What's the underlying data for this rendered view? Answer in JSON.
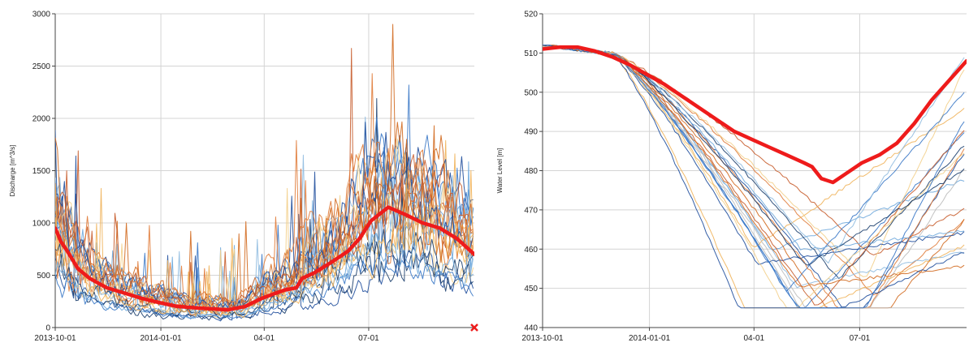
{
  "chart_data": [
    {
      "type": "line",
      "xlabel": "",
      "ylabel": "Discharge [m^3/s]",
      "ylim": [
        0,
        3000
      ],
      "yticks": [
        "0",
        "500",
        "1000",
        "1500",
        "2000",
        "2500",
        "3000"
      ],
      "xticks": [
        "2013-10-01",
        "2014-01-01",
        "04-01",
        "07-01"
      ],
      "x_range_days": [
        0,
        365
      ],
      "xtick_days": [
        0,
        92,
        182,
        273
      ],
      "grid": true,
      "end_marker": "red x",
      "main_color": "#ee1b1b",
      "series_colors": [
        "#1f4e9c",
        "#3a78c6",
        "#6fa8dc",
        "#c75b2a",
        "#e07b39",
        "#f0b35a",
        "#f3cf8a",
        "#1c3f6e",
        "#8fbbe0",
        "#d2691e"
      ],
      "highlight_series": {
        "x": [
          0,
          5,
          10,
          20,
          30,
          45,
          60,
          75,
          90,
          105,
          120,
          135,
          150,
          165,
          180,
          195,
          200,
          210,
          215,
          225,
          240,
          255,
          265,
          275,
          290,
          305,
          320,
          335,
          350,
          365
        ],
        "values": [
          950,
          820,
          740,
          560,
          470,
          380,
          330,
          280,
          240,
          205,
          190,
          180,
          170,
          200,
          280,
          340,
          360,
          380,
          470,
          520,
          620,
          730,
          850,
          1020,
          1150,
          1080,
          1000,
          950,
          850,
          700
        ]
      },
      "ensemble_summary": "approx 28 blue/orange trace members"
    },
    {
      "type": "line",
      "xlabel": "",
      "ylabel": "Water Level [m]",
      "ylim": [
        440,
        520
      ],
      "yticks": [
        "440",
        "450",
        "460",
        "470",
        "480",
        "490",
        "500",
        "510",
        "520"
      ],
      "xticks": [
        "2013-10-01",
        "2014-01-01",
        "04-01",
        "07-01"
      ],
      "x_range_days": [
        0,
        365
      ],
      "xtick_days": [
        0,
        92,
        182,
        273
      ],
      "grid": true,
      "main_color": "#ee1b1b",
      "series_colors": [
        "#1f4e9c",
        "#3a78c6",
        "#6fa8dc",
        "#c75b2a",
        "#e07b39",
        "#f0b35a",
        "#f3cf8a",
        "#1c3f6e",
        "#8fbbe0",
        "#d2691e",
        "#bbbbbb"
      ],
      "highlight_series": {
        "x": [
          0,
          15,
          30,
          45,
          60,
          75,
          90,
          105,
          120,
          135,
          150,
          165,
          180,
          195,
          210,
          225,
          232,
          240,
          250,
          260,
          275,
          290,
          305,
          320,
          335,
          350,
          365
        ],
        "values": [
          511,
          511.5,
          511.5,
          510.5,
          509,
          507,
          504.5,
          502,
          499,
          496,
          493,
          490,
          488,
          486,
          484,
          482,
          481,
          478,
          477,
          479,
          482,
          484,
          487,
          492,
          498,
          503,
          508
        ]
      },
      "ensemble_summary": "approx 24 blue/orange trace members"
    }
  ]
}
